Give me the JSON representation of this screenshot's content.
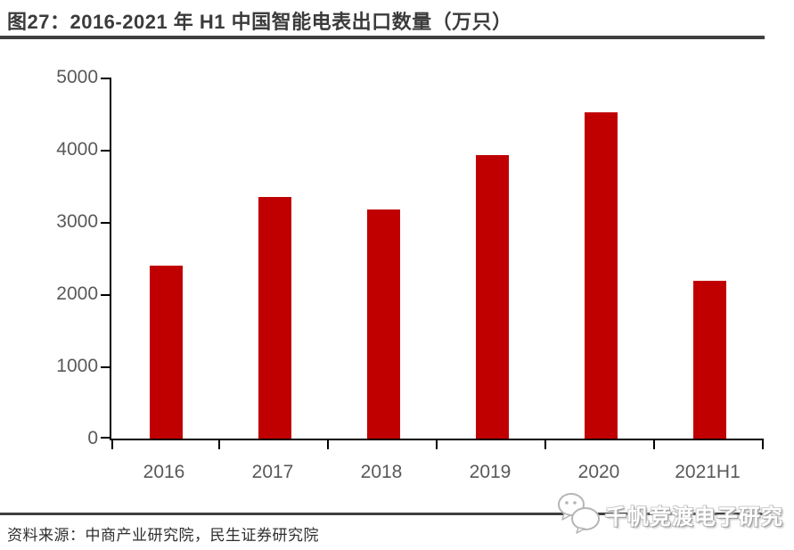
{
  "header": {
    "title": "图27：2016-2021 年 H1 中国智能电表出口数量（万只）"
  },
  "footer": {
    "source": "资料来源：中商产业研究院，民生证券研究院",
    "watermark_icon": "chat-bubbles-icon",
    "watermark_text": "千帆竞渡电子研究"
  },
  "colors": {
    "bar": "#c00000",
    "axis": "#000000",
    "tick_label": "#595959",
    "title_text": "#3b3b3b",
    "rule": "#3f3f3f"
  },
  "chart_data": {
    "type": "bar",
    "figure_label": "图27",
    "title": "2016-2021 年 H1 中国智能电表出口数量（万只）",
    "unit": "万只",
    "categories": [
      "2016",
      "2017",
      "2018",
      "2019",
      "2020",
      "2021H1"
    ],
    "values": [
      2390,
      3350,
      3175,
      3930,
      4520,
      2180
    ],
    "xlabel": "",
    "ylabel": "",
    "ylim": [
      0,
      5000
    ],
    "yticks": [
      0,
      1000,
      2000,
      3000,
      4000,
      5000
    ],
    "grid": false,
    "legend": false,
    "bar_color": "#c00000"
  }
}
